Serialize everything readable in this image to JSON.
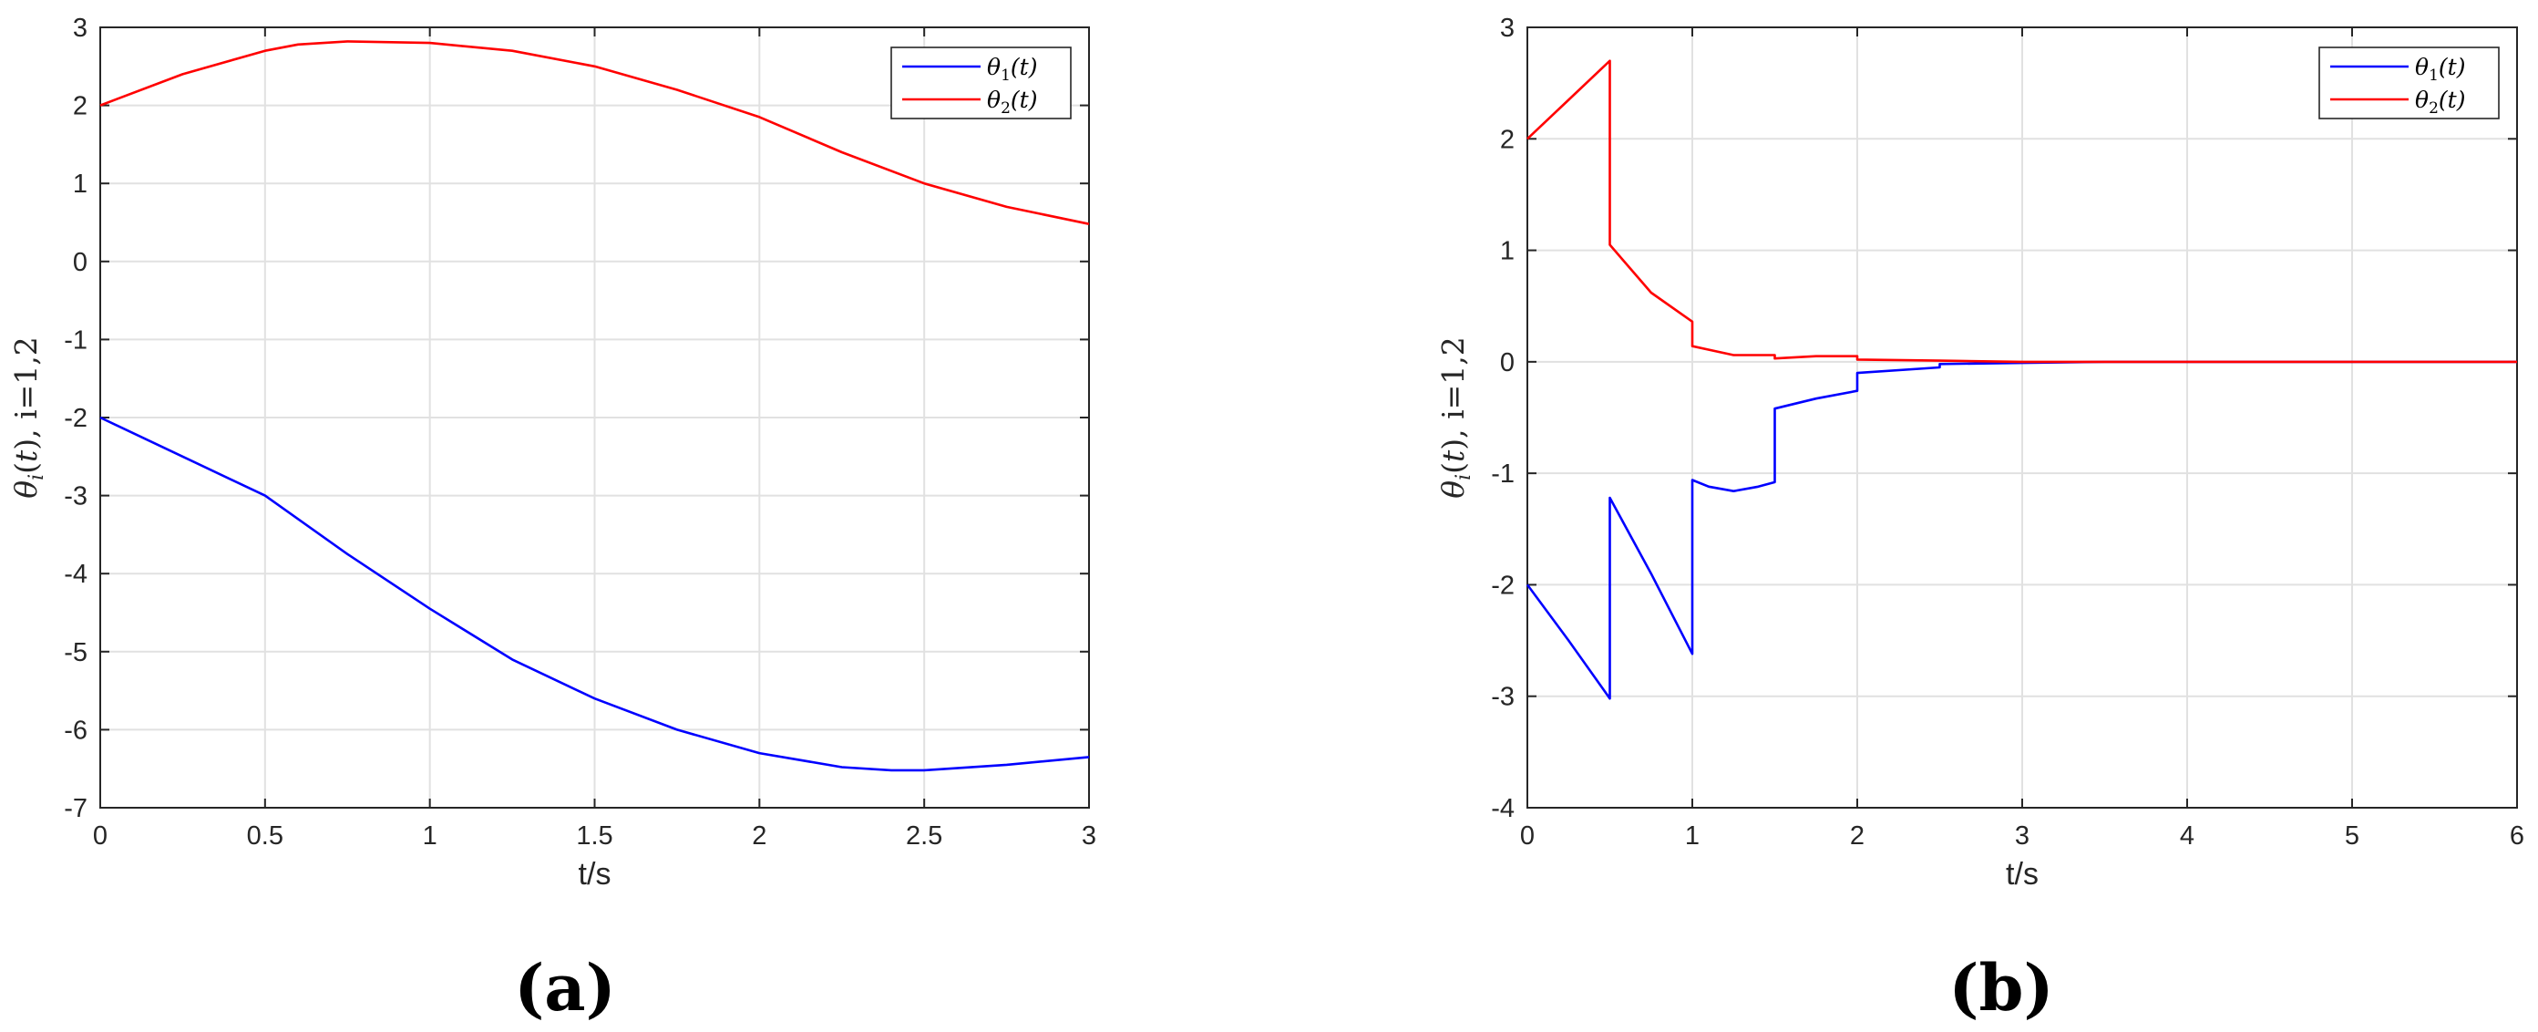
{
  "chart_data": [
    {
      "type": "line",
      "panel_label": "(a)",
      "xlabel": "t/s",
      "ylabel": "θi(t), i=1,2",
      "xlim": [
        0,
        3
      ],
      "ylim": [
        -7,
        3
      ],
      "xticks": [
        "0",
        "0.5",
        "1",
        "1.5",
        "2",
        "2.5",
        "3"
      ],
      "yticks": [
        "-7",
        "-6",
        "-5",
        "-4",
        "-3",
        "-2",
        "-1",
        "0",
        "1",
        "2",
        "3"
      ],
      "grid": true,
      "legend_position": "top-right",
      "series": [
        {
          "name": "θ1(t)",
          "color": "#0000ff",
          "x": [
            0,
            0.25,
            0.5,
            0.75,
            1.0,
            1.25,
            1.5,
            1.75,
            2.0,
            2.25,
            2.4,
            2.5,
            2.75,
            3.0
          ],
          "y": [
            -2.0,
            -2.5,
            -3.0,
            -3.75,
            -4.45,
            -5.1,
            -5.6,
            -6.0,
            -6.3,
            -6.48,
            -6.52,
            -6.52,
            -6.45,
            -6.35
          ]
        },
        {
          "name": "θ2(t)",
          "color": "#ff0000",
          "x": [
            0,
            0.25,
            0.5,
            0.6,
            0.75,
            1.0,
            1.25,
            1.5,
            1.75,
            2.0,
            2.25,
            2.5,
            2.75,
            3.0
          ],
          "y": [
            2.0,
            2.4,
            2.7,
            2.78,
            2.82,
            2.8,
            2.7,
            2.5,
            2.2,
            1.85,
            1.4,
            1.0,
            0.7,
            0.48
          ]
        }
      ]
    },
    {
      "type": "line",
      "panel_label": "(b)",
      "xlabel": "t/s",
      "ylabel": "θi(t), i=1,2",
      "xlim": [
        0,
        6
      ],
      "ylim": [
        -4,
        3
      ],
      "xticks": [
        "0",
        "1",
        "2",
        "3",
        "4",
        "5",
        "6"
      ],
      "yticks": [
        "-4",
        "-3",
        "-2",
        "-1",
        "0",
        "1",
        "2",
        "3"
      ],
      "grid": true,
      "legend_position": "top-right",
      "series": [
        {
          "name": "θ1(t)",
          "color": "#0000ff",
          "x": [
            0,
            0.25,
            0.5,
            0.5,
            0.75,
            1.0,
            1.0,
            1.1,
            1.25,
            1.4,
            1.5,
            1.5,
            1.75,
            2.0,
            2.0,
            2.5,
            2.5,
            3.0,
            3.5,
            4.0,
            5.0,
            6.0
          ],
          "y": [
            -2.0,
            -2.5,
            -3.02,
            -1.22,
            -1.9,
            -2.62,
            -1.06,
            -1.12,
            -1.16,
            -1.12,
            -1.08,
            -0.42,
            -0.33,
            -0.26,
            -0.1,
            -0.05,
            -0.02,
            -0.01,
            0.0,
            0.0,
            0.0,
            0.0
          ]
        },
        {
          "name": "θ2(t)",
          "color": "#ff0000",
          "x": [
            0,
            0.25,
            0.5,
            0.5,
            0.75,
            1.0,
            1.0,
            1.25,
            1.5,
            1.5,
            1.75,
            2.0,
            2.0,
            2.5,
            3.0,
            4.0,
            5.0,
            6.0
          ],
          "y": [
            2.0,
            2.35,
            2.7,
            1.05,
            0.62,
            0.36,
            0.14,
            0.06,
            0.06,
            0.03,
            0.05,
            0.05,
            0.02,
            0.01,
            0.0,
            0.0,
            0.0,
            0.0
          ]
        }
      ]
    }
  ]
}
